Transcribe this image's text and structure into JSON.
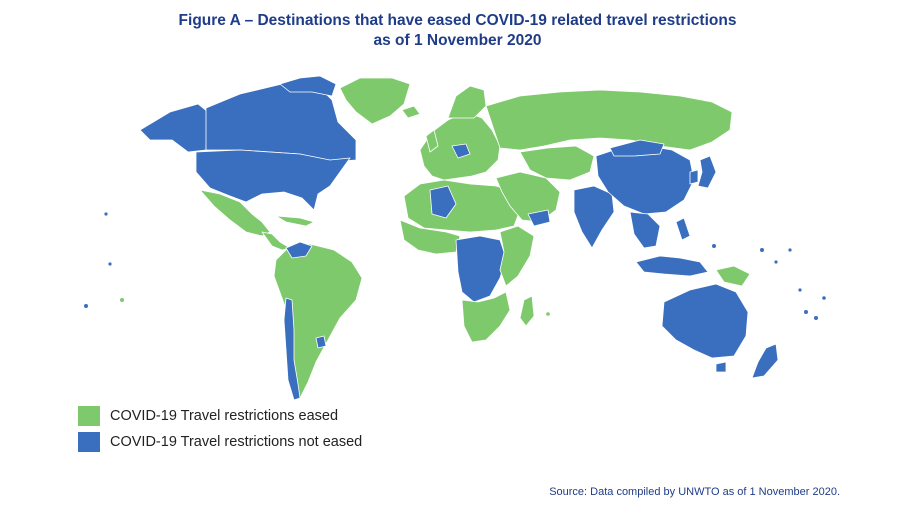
{
  "title": {
    "line1": "Figure A – Destinations that have eased COVID-19 related travel restrictions",
    "line2": "as of 1 November 2020"
  },
  "colors": {
    "eased": "#7ec96c",
    "not_eased": "#3a6fbf",
    "title": "#1f3c88",
    "border": "#ffffff"
  },
  "legend": {
    "items": [
      {
        "label": "COVID-19 Travel restrictions eased",
        "color": "#7ec96c"
      },
      {
        "label": "COVID-19 Travel restrictions not eased",
        "color": "#3a6fbf"
      }
    ]
  },
  "map": {
    "categories_by_region": [
      {
        "region": "canada",
        "status": "not_eased"
      },
      {
        "region": "united-states",
        "status": "not_eased"
      },
      {
        "region": "alaska",
        "status": "not_eased"
      },
      {
        "region": "greenland",
        "status": "eased"
      },
      {
        "region": "mexico",
        "status": "eased"
      },
      {
        "region": "central-america",
        "status": "eased"
      },
      {
        "region": "south-america",
        "status": "eased"
      },
      {
        "region": "chile",
        "status": "not_eased"
      },
      {
        "region": "europe",
        "status": "eased"
      },
      {
        "region": "russia",
        "status": "eased"
      },
      {
        "region": "north-africa",
        "status": "eased"
      },
      {
        "region": "west-africa",
        "status": "eased"
      },
      {
        "region": "central-africa",
        "status": "not_eased"
      },
      {
        "region": "southern-africa",
        "status": "eased"
      },
      {
        "region": "middle-east",
        "status": "eased"
      },
      {
        "region": "india",
        "status": "not_eased"
      },
      {
        "region": "china",
        "status": "not_eased"
      },
      {
        "region": "mongolia",
        "status": "not_eased"
      },
      {
        "region": "kazakhstan",
        "status": "eased"
      },
      {
        "region": "southeast-asia",
        "status": "not_eased"
      },
      {
        "region": "indonesia",
        "status": "not_eased"
      },
      {
        "region": "japan",
        "status": "not_eased"
      },
      {
        "region": "australia",
        "status": "not_eased"
      },
      {
        "region": "new-zealand",
        "status": "not_eased"
      },
      {
        "region": "papua-new-guinea",
        "status": "eased"
      }
    ]
  },
  "source": "Source: Data compiled by UNWTO as of 1 November 2020."
}
